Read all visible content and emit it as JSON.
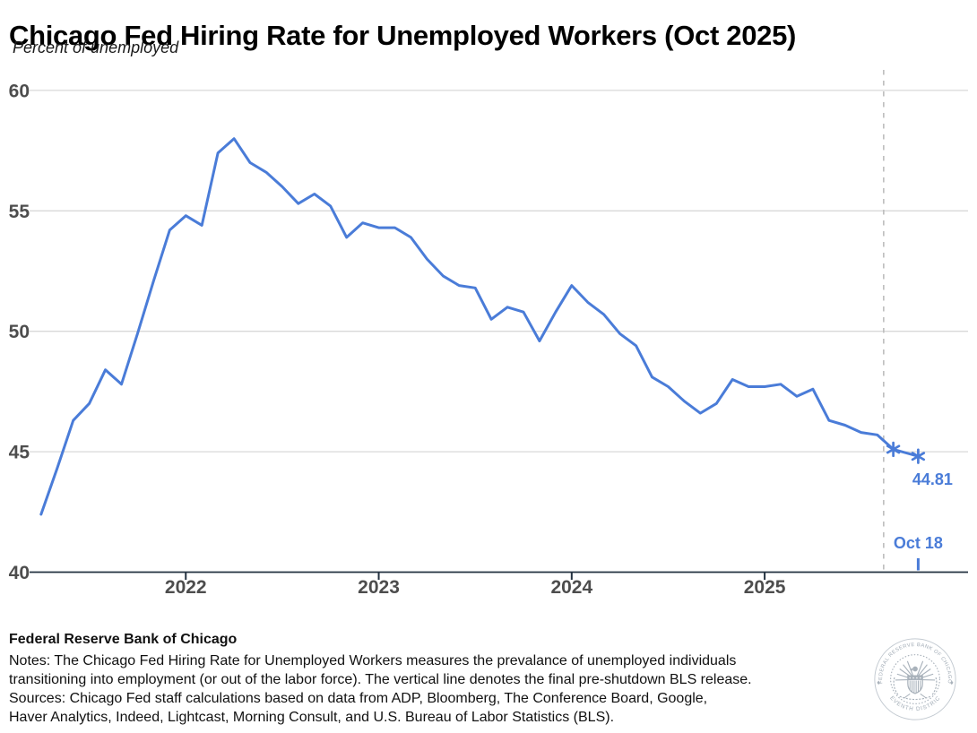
{
  "title": "Chicago Fed Hiring Rate for Unemployed Workers (Oct 2025)",
  "subtitle": "Percent of unemployed",
  "chart_data": {
    "type": "line",
    "title": "Chicago Fed Hiring Rate for Unemployed Workers (Oct 2025)",
    "ylabel": "Percent of unemployed",
    "ylim": [
      40,
      60
    ],
    "y_ticks": [
      40,
      45,
      50,
      55,
      60
    ],
    "x_ticks": [
      {
        "label": "2022",
        "date": "2022-01"
      },
      {
        "label": "2023",
        "date": "2023-01"
      },
      {
        "label": "2024",
        "date": "2024-01"
      },
      {
        "label": "2025",
        "date": "2025-01"
      }
    ],
    "grid": true,
    "legend_position": "none",
    "series": [
      {
        "name": "Hiring rate for unemployed workers",
        "color": "#4a7cd8",
        "points": [
          [
            "2021-04",
            42.4
          ],
          [
            "2021-05",
            44.3
          ],
          [
            "2021-06",
            46.3
          ],
          [
            "2021-07",
            47.0
          ],
          [
            "2021-08",
            48.4
          ],
          [
            "2021-09",
            47.8
          ],
          [
            "2021-10",
            49.9
          ],
          [
            "2021-11",
            52.1
          ],
          [
            "2021-12",
            54.2
          ],
          [
            "2022-01",
            54.8
          ],
          [
            "2022-02",
            54.4
          ],
          [
            "2022-03",
            57.4
          ],
          [
            "2022-04",
            58.0
          ],
          [
            "2022-05",
            57.0
          ],
          [
            "2022-06",
            56.6
          ],
          [
            "2022-07",
            56.0
          ],
          [
            "2022-08",
            55.3
          ],
          [
            "2022-09",
            55.7
          ],
          [
            "2022-10",
            55.2
          ],
          [
            "2022-11",
            53.9
          ],
          [
            "2022-12",
            54.5
          ],
          [
            "2023-01",
            54.3
          ],
          [
            "2023-02",
            54.3
          ],
          [
            "2023-03",
            53.9
          ],
          [
            "2023-04",
            53.0
          ],
          [
            "2023-05",
            52.3
          ],
          [
            "2023-06",
            51.9
          ],
          [
            "2023-07",
            51.8
          ],
          [
            "2023-08",
            50.5
          ],
          [
            "2023-09",
            51.0
          ],
          [
            "2023-10",
            50.8
          ],
          [
            "2023-11",
            49.6
          ],
          [
            "2023-12",
            50.8
          ],
          [
            "2024-01",
            51.9
          ],
          [
            "2024-02",
            51.2
          ],
          [
            "2024-03",
            50.7
          ],
          [
            "2024-04",
            49.9
          ],
          [
            "2024-05",
            49.4
          ],
          [
            "2024-06",
            48.1
          ],
          [
            "2024-07",
            47.7
          ],
          [
            "2024-08",
            47.1
          ],
          [
            "2024-09",
            46.6
          ],
          [
            "2024-10",
            47.0
          ],
          [
            "2024-11",
            48.0
          ],
          [
            "2024-12",
            47.7
          ],
          [
            "2025-01",
            47.7
          ],
          [
            "2025-02",
            47.8
          ],
          [
            "2025-03",
            47.3
          ],
          [
            "2025-04",
            47.6
          ],
          [
            "2025-05",
            46.3
          ],
          [
            "2025-06",
            46.1
          ],
          [
            "2025-07",
            45.8
          ],
          [
            "2025-08",
            45.7
          ],
          [
            "2025-09",
            45.1
          ],
          [
            "2025-10-18",
            44.81
          ]
        ],
        "starred_last_n": 2
      }
    ],
    "vline": {
      "months_from_start": 52.4,
      "style": "dashed"
    },
    "annotations": {
      "last_value_label": "44.81",
      "last_date_label": "Oct 18"
    }
  },
  "footer": {
    "brand": "Federal Reserve Bank of Chicago",
    "lines": [
      "Notes: The Chicago Fed Hiring Rate for Unemployed Workers measures the prevalance of unemployed individuals",
      "transitioning into employment (or out of the labor force). The vertical line denotes the final pre-shutdown BLS release.",
      "Sources: Chicago Fed staff calculations based on data from ADP, Bloomberg, The Conference Board, Google,",
      "Haver Analytics, Indeed, Lightcast, Morning Consult, and U.S. Bureau of Labor Statistics (BLS)."
    ]
  },
  "seal": {
    "top_text": "FEDERAL RESERVE BANK OF CHICAGO",
    "bottom_text": "SEVENTH DISTRICT"
  },
  "colors": {
    "line_blue": "#4a7cd8",
    "annotation_blue": "#4a7cd8",
    "gridline": "#d9d9d9",
    "dashed_line": "#bdbdbd",
    "axis": "#233140",
    "tick_label": "#4d4d4d",
    "seal_gray": "#a9b2bb"
  }
}
